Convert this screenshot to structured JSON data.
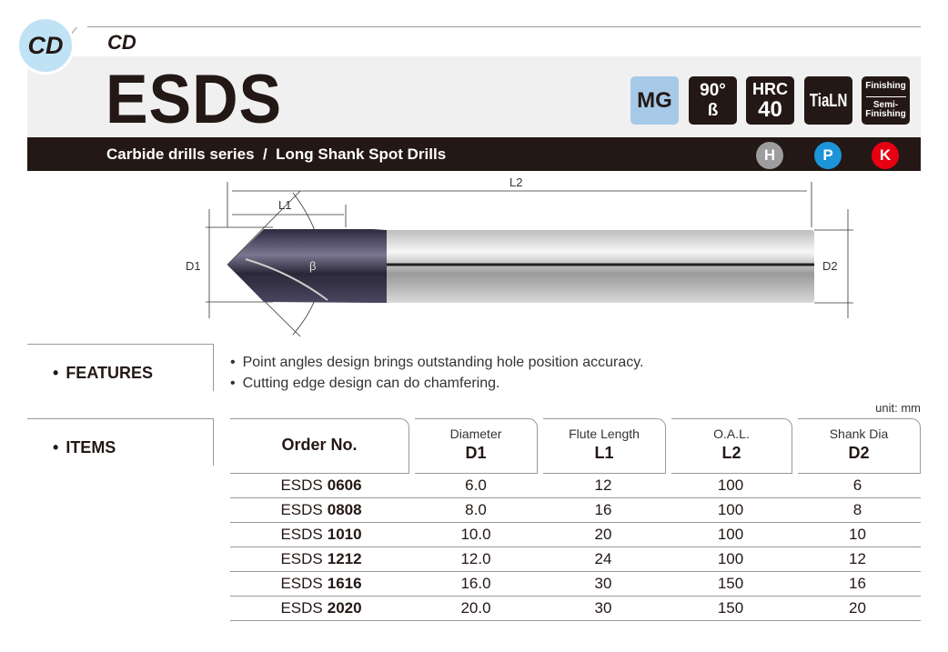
{
  "header": {
    "badge_circle": "CD",
    "category": "CD",
    "title": "ESDS",
    "badges": [
      {
        "label": "MG",
        "color": "#a7c9e8"
      },
      {
        "line1": "90°",
        "line2": "ß"
      },
      {
        "line1": "HRC",
        "line2": "40"
      },
      {
        "label": "TiaLN"
      },
      {
        "line1": "Finishing",
        "line2": "Semi-Finishing"
      }
    ],
    "subtitle": "Carbide drills series  /  Long Shank Spot Drills",
    "materials": [
      {
        "label": "H",
        "color": "#9d9d9d"
      },
      {
        "label": "P",
        "color": "#1c94d8"
      },
      {
        "label": "K",
        "color": "#e60012"
      }
    ]
  },
  "drawing": {
    "labels": {
      "l1": "L1",
      "l2": "L2",
      "d1": "D1",
      "d2": "D2",
      "angle": "β"
    }
  },
  "features": {
    "heading": "FEATURES",
    "items": [
      "Point angles design brings outstanding hole position accuracy.",
      "Cutting edge design can do chamfering."
    ]
  },
  "items": {
    "heading": "ITEMS",
    "unit": "unit: mm",
    "columns": [
      {
        "label": "Order No."
      },
      {
        "label": "Diameter",
        "sym": "D1"
      },
      {
        "label": "Flute Length",
        "sym": "L1"
      },
      {
        "label": "O.A.L.",
        "sym": "L2"
      },
      {
        "label": "Shank Dia",
        "sym": "D2"
      }
    ],
    "rows": [
      {
        "prefix": "ESDS",
        "code": "0606",
        "d1": "6.0",
        "l1": "12",
        "l2": "100",
        "d2": "6"
      },
      {
        "prefix": "ESDS",
        "code": "0808",
        "d1": "8.0",
        "l1": "16",
        "l2": "100",
        "d2": "8"
      },
      {
        "prefix": "ESDS",
        "code": "1010",
        "d1": "10.0",
        "l1": "20",
        "l2": "100",
        "d2": "10"
      },
      {
        "prefix": "ESDS",
        "code": "1212",
        "d1": "12.0",
        "l1": "24",
        "l2": "100",
        "d2": "12"
      },
      {
        "prefix": "ESDS",
        "code": "1616",
        "d1": "16.0",
        "l1": "30",
        "l2": "150",
        "d2": "16"
      },
      {
        "prefix": "ESDS",
        "code": "2020",
        "d1": "20.0",
        "l1": "30",
        "l2": "150",
        "d2": "20"
      }
    ]
  }
}
